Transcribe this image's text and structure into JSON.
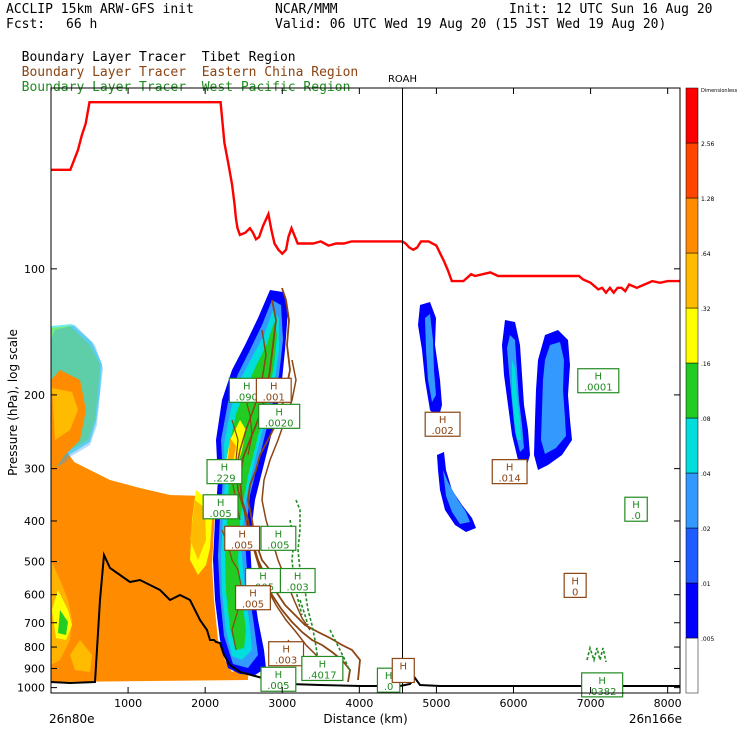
{
  "header": {
    "model": "ACCLIP 15km ARW-GFS init",
    "fcst_label": "Fcst:",
    "fcst_value": "66 h",
    "center": "NCAR/MMM",
    "init": "Init: 12 UTC Sun 16 Aug 20",
    "valid": "Valid: 06 UTC Wed 19 Aug 20 (15 JST Wed 19 Aug 20)"
  },
  "legend": [
    {
      "label": "Boundary Layer Tracer",
      "region": "Tibet Region",
      "color": "#000000"
    },
    {
      "label": "Boundary Layer Tracer",
      "region": "Eastern China Region",
      "color": "#8b4513"
    },
    {
      "label": "Boundary Layer Tracer",
      "region": "West Pacific Region",
      "color": "#228b22"
    }
  ],
  "chart_data": {
    "type": "cross-section",
    "xlabel": "Distance (km)",
    "ylabel": "Pressure (hPa), log scale",
    "x_ticks": [
      1000,
      2000,
      3000,
      4000,
      5000,
      6000,
      7000,
      8000
    ],
    "y_ticks": [
      100,
      200,
      300,
      400,
      500,
      600,
      700,
      800,
      900,
      1000
    ],
    "y_scale": "log",
    "xlim": [
      0,
      8160
    ],
    "ylim": [
      1030,
      37
    ],
    "left_endpoint": "26n80e",
    "right_endpoint": "26n166e",
    "vertical_marker": {
      "label": "ROAH",
      "x": 4560
    },
    "colorbar": {
      "title": "Dimensionless",
      "levels": [
        ".005",
        ".01",
        ".02",
        ".04",
        ".08",
        ".16",
        ".32",
        ".64",
        "1.28",
        "2.56"
      ],
      "colors": [
        "#ffffff",
        "#0000ff",
        "#1e5cff",
        "#3399ff",
        "#00dddd",
        "#22cc22",
        "#ffff00",
        "#ffbb00",
        "#ff8c00",
        "#ff4500",
        "#ff0000"
      ]
    },
    "tropopause_line": {
      "color": "#ff0000",
      "points": [
        [
          0,
          58
        ],
        [
          250,
          58
        ],
        [
          300,
          55
        ],
        [
          350,
          52
        ],
        [
          400,
          48
        ],
        [
          450,
          45
        ],
        [
          500,
          40
        ],
        [
          700,
          40
        ],
        [
          1100,
          40
        ],
        [
          1500,
          40
        ],
        [
          2000,
          40
        ],
        [
          2200,
          40
        ],
        [
          2250,
          50
        ],
        [
          2300,
          56
        ],
        [
          2350,
          63
        ],
        [
          2380,
          70
        ],
        [
          2400,
          76
        ],
        [
          2420,
          80
        ],
        [
          2450,
          83
        ],
        [
          2520,
          82
        ],
        [
          2580,
          80
        ],
        [
          2620,
          82
        ],
        [
          2660,
          85
        ],
        [
          2700,
          84
        ],
        [
          2750,
          79
        ],
        [
          2820,
          74
        ],
        [
          2860,
          81
        ],
        [
          2900,
          87
        ],
        [
          2950,
          90
        ],
        [
          3000,
          92
        ],
        [
          3050,
          90
        ],
        [
          3080,
          84
        ],
        [
          3120,
          80
        ],
        [
          3200,
          87
        ],
        [
          3300,
          87
        ],
        [
          3400,
          87
        ],
        [
          3500,
          86
        ],
        [
          3600,
          88
        ],
        [
          3700,
          87
        ],
        [
          3800,
          87
        ],
        [
          3900,
          86
        ],
        [
          4000,
          86
        ],
        [
          4150,
          86
        ],
        [
          4300,
          86
        ],
        [
          4480,
          86
        ],
        [
          4560,
          86
        ],
        [
          4600,
          87
        ],
        [
          4650,
          89
        ],
        [
          4700,
          90
        ],
        [
          4750,
          89
        ],
        [
          4800,
          86
        ],
        [
          4900,
          86
        ],
        [
          5000,
          88
        ],
        [
          5050,
          92
        ],
        [
          5100,
          96
        ],
        [
          5150,
          101
        ],
        [
          5200,
          107
        ],
        [
          5280,
          107
        ],
        [
          5350,
          107
        ],
        [
          5450,
          103
        ],
        [
          5500,
          104
        ],
        [
          5600,
          103
        ],
        [
          5700,
          102
        ],
        [
          5800,
          104
        ],
        [
          5900,
          104
        ],
        [
          6000,
          104
        ],
        [
          6100,
          104
        ],
        [
          6200,
          104
        ],
        [
          6300,
          104
        ],
        [
          6400,
          104
        ],
        [
          6500,
          104
        ],
        [
          6600,
          104
        ],
        [
          6700,
          104
        ],
        [
          6850,
          104
        ],
        [
          6900,
          106
        ],
        [
          7000,
          108
        ],
        [
          7100,
          112
        ],
        [
          7150,
          111
        ],
        [
          7200,
          114
        ],
        [
          7250,
          111
        ],
        [
          7300,
          114
        ],
        [
          7350,
          111
        ],
        [
          7400,
          111
        ],
        [
          7450,
          113
        ],
        [
          7500,
          109
        ],
        [
          7600,
          111
        ],
        [
          7700,
          109
        ],
        [
          7800,
          107
        ],
        [
          7900,
          108
        ],
        [
          8000,
          107
        ],
        [
          8100,
          107
        ],
        [
          8160,
          107
        ]
      ]
    },
    "annotations": [
      {
        "x": 2250,
        "p": 305,
        "value": ".229",
        "region": "West Pacific"
      },
      {
        "x": 2200,
        "p": 370,
        "value": ".005",
        "region": "West Pacific"
      },
      {
        "x": 2540,
        "p": 195,
        "value": ".090",
        "region": "West Pacific"
      },
      {
        "x": 2890,
        "p": 195,
        "value": ".001",
        "region": "Eastern China"
      },
      {
        "x": 2960,
        "p": 225,
        "value": ".0020",
        "region": "West Pacific"
      },
      {
        "x": 2480,
        "p": 440,
        "value": ".005",
        "region": "Eastern China"
      },
      {
        "x": 2950,
        "p": 440,
        "value": ".005",
        "region": "West Pacific"
      },
      {
        "x": 3200,
        "p": 555,
        "value": ".003",
        "region": "West Pacific"
      },
      {
        "x": 2750,
        "p": 555,
        "value": ".005",
        "region": "West Pacific"
      },
      {
        "x": 2620,
        "p": 610,
        "value": ".005",
        "region": "Eastern China"
      },
      {
        "x": 3050,
        "p": 830,
        "value": ".003",
        "region": "Eastern China"
      },
      {
        "x": 2950,
        "p": 955,
        "value": ".005",
        "region": "West Pacific"
      },
      {
        "x": 3520,
        "p": 900,
        "value": ".4017",
        "region": "West Pacific"
      },
      {
        "x": 4380,
        "p": 960,
        "value": ".0",
        "region": "West Pacific"
      },
      {
        "x": 4570,
        "p": 910,
        "value": "",
        "region": "Eastern China"
      },
      {
        "x": 5080,
        "p": 235,
        "value": ".002",
        "region": "Eastern China"
      },
      {
        "x": 5950,
        "p": 305,
        "value": ".014",
        "region": "Eastern China"
      },
      {
        "x": 6800,
        "p": 570,
        "value": "0",
        "region": "Eastern China"
      },
      {
        "x": 7100,
        "p": 185,
        "value": ".0001",
        "region": "West Pacific"
      },
      {
        "x": 7590,
        "p": 375,
        "value": ".0",
        "region": "West Pacific"
      },
      {
        "x": 7150,
        "p": 985,
        "value": ".0382",
        "region": "West Pacific"
      }
    ]
  }
}
